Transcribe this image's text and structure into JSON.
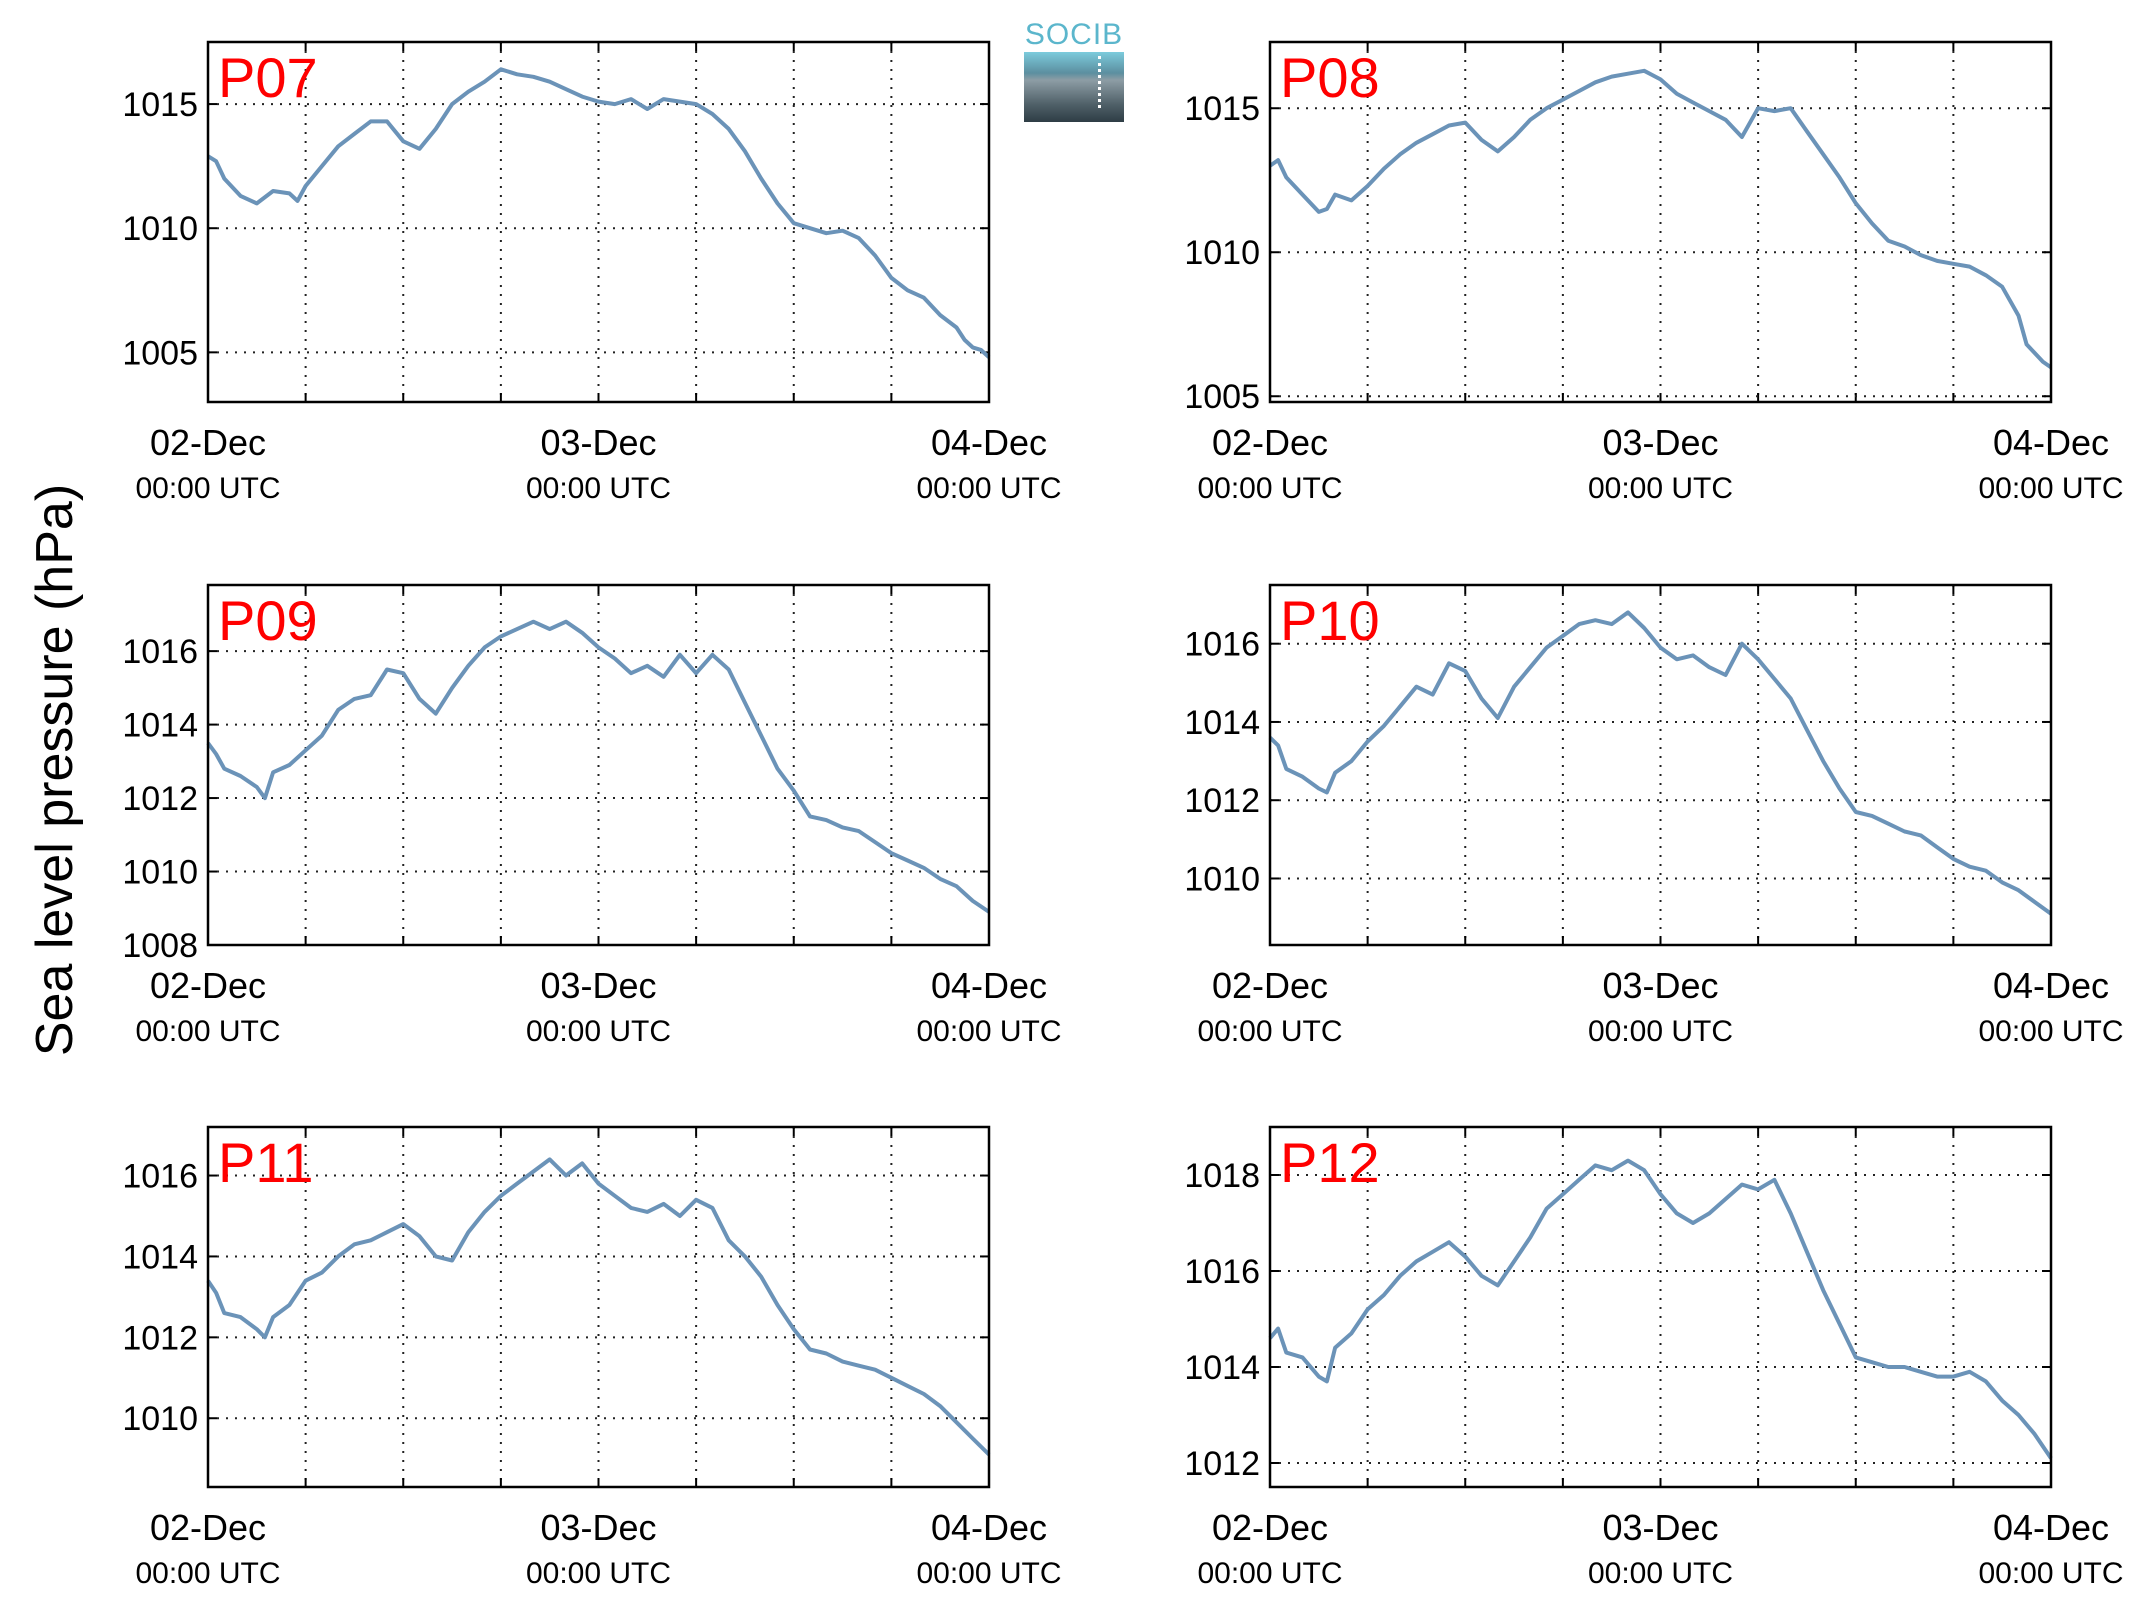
{
  "figure": {
    "ylabel": "Sea level pressure (hPa)",
    "logo_text": "SOCIB",
    "line_color": "#6b93b8",
    "label_color": "#ff0000"
  },
  "chart_data": [
    {
      "type": "line",
      "name": "P07",
      "xlabels": [
        [
          "02-Dec",
          "00:00 UTC"
        ],
        [
          "03-Dec",
          "00:00 UTC"
        ],
        [
          "04-Dec",
          "00:00 UTC"
        ]
      ],
      "xlim": [
        0,
        48
      ],
      "ylim": [
        1003,
        1017.5
      ],
      "yticks": [
        1005,
        1010,
        1015
      ],
      "x": [
        0,
        0.5,
        1,
        2,
        3,
        4,
        5,
        5.5,
        6,
        7,
        8,
        9,
        10,
        11,
        12,
        13,
        14,
        15,
        16,
        17,
        18,
        19,
        20,
        21,
        22,
        23,
        24,
        25,
        26,
        27,
        28,
        29,
        30,
        31,
        32,
        33,
        34,
        35,
        36,
        37,
        38,
        39,
        40,
        41,
        42,
        43,
        44,
        45,
        46,
        46.5,
        47,
        47.5,
        48
      ],
      "values": [
        1012.9,
        1012.7,
        1012.0,
        1011.3,
        1011.0,
        1011.5,
        1011.4,
        1011.1,
        1011.7,
        1012.5,
        1013.3,
        1013.8,
        1014.3,
        1014.3,
        1013.5,
        1013.2,
        1014.0,
        1015.0,
        1015.5,
        1015.9,
        1016.4,
        1016.2,
        1016.1,
        1015.9,
        1015.6,
        1015.3,
        1015.1,
        1015.0,
        1015.2,
        1014.8,
        1015.2,
        1015.1,
        1015.0,
        1014.6,
        1014.0,
        1013.1,
        1012.0,
        1011.0,
        1010.2,
        1010.0,
        1009.8,
        1009.9,
        1009.6,
        1008.9,
        1008.0,
        1007.5,
        1007.2,
        1006.5,
        1006.0,
        1005.5,
        1005.2,
        1005.1,
        1004.8
      ]
    },
    {
      "type": "line",
      "name": "P08",
      "xlabels": [
        [
          "02-Dec",
          "00:00 UTC"
        ],
        [
          "03-Dec",
          "00:00 UTC"
        ],
        [
          "04-Dec",
          "00:00 UTC"
        ]
      ],
      "xlim": [
        0,
        48
      ],
      "ylim": [
        1004.8,
        1017.3
      ],
      "yticks": [
        1005,
        1010,
        1015
      ],
      "x": [
        0,
        0.5,
        1,
        2,
        3,
        3.5,
        4,
        5,
        6,
        7,
        8,
        9,
        10,
        11,
        12,
        13,
        14,
        15,
        16,
        17,
        18,
        19,
        20,
        21,
        22,
        23,
        24,
        25,
        26,
        27,
        28,
        29,
        30,
        31,
        32,
        33,
        34,
        35,
        36,
        37,
        38,
        39,
        40,
        41,
        42,
        43,
        44,
        45,
        46,
        46.5,
        47,
        47.5,
        48
      ],
      "values": [
        1013.0,
        1013.2,
        1012.6,
        1012.0,
        1011.4,
        1011.5,
        1012.0,
        1011.8,
        1012.3,
        1012.9,
        1013.4,
        1013.8,
        1014.1,
        1014.4,
        1014.5,
        1013.9,
        1013.5,
        1014.0,
        1014.6,
        1015.0,
        1015.3,
        1015.6,
        1015.9,
        1016.1,
        1016.2,
        1016.3,
        1016.0,
        1015.5,
        1015.2,
        1014.9,
        1014.6,
        1014.0,
        1015.0,
        1014.9,
        1015.0,
        1014.2,
        1013.4,
        1012.6,
        1011.7,
        1011.0,
        1010.4,
        1010.2,
        1009.9,
        1009.7,
        1009.6,
        1009.5,
        1009.2,
        1008.8,
        1007.8,
        1006.8,
        1006.5,
        1006.2,
        1006.0
      ]
    },
    {
      "type": "line",
      "name": "P09",
      "xlabels": [
        [
          "02-Dec",
          "00:00 UTC"
        ],
        [
          "03-Dec",
          "00:00 UTC"
        ],
        [
          "04-Dec",
          "00:00 UTC"
        ]
      ],
      "xlim": [
        0,
        48
      ],
      "ylim": [
        1008,
        1017.8
      ],
      "yticks": [
        1008,
        1010,
        1012,
        1014,
        1016
      ],
      "x": [
        0,
        0.5,
        1,
        2,
        3,
        3.5,
        4,
        5,
        6,
        7,
        8,
        9,
        10,
        11,
        12,
        13,
        14,
        15,
        16,
        17,
        18,
        19,
        20,
        21,
        22,
        23,
        24,
        25,
        26,
        27,
        28,
        29,
        30,
        31,
        32,
        33,
        34,
        35,
        36,
        37,
        38,
        39,
        40,
        41,
        42,
        43,
        44,
        45,
        46,
        47,
        48
      ],
      "values": [
        1013.5,
        1013.2,
        1012.8,
        1012.6,
        1012.3,
        1012.0,
        1012.7,
        1012.9,
        1013.3,
        1013.7,
        1014.4,
        1014.7,
        1014.8,
        1015.5,
        1015.4,
        1014.7,
        1014.3,
        1015.0,
        1015.6,
        1016.1,
        1016.4,
        1016.6,
        1016.8,
        1016.6,
        1016.8,
        1016.5,
        1016.1,
        1015.8,
        1015.4,
        1015.6,
        1015.3,
        1015.9,
        1015.4,
        1015.9,
        1015.5,
        1014.6,
        1013.7,
        1012.8,
        1012.2,
        1011.5,
        1011.4,
        1011.2,
        1011.1,
        1010.8,
        1010.5,
        1010.3,
        1010.1,
        1009.8,
        1009.6,
        1009.2,
        1008.9
      ]
    },
    {
      "type": "line",
      "name": "P10",
      "xlabels": [
        [
          "02-Dec",
          "00:00 UTC"
        ],
        [
          "03-Dec",
          "00:00 UTC"
        ],
        [
          "04-Dec",
          "00:00 UTC"
        ]
      ],
      "xlim": [
        0,
        48
      ],
      "ylim": [
        1008.3,
        1017.5
      ],
      "yticks": [
        1010,
        1012,
        1014,
        1016
      ],
      "x": [
        0,
        0.5,
        1,
        2,
        3,
        3.5,
        4,
        5,
        6,
        7,
        8,
        9,
        10,
        11,
        12,
        13,
        14,
        15,
        16,
        17,
        18,
        19,
        20,
        21,
        22,
        23,
        24,
        25,
        26,
        27,
        28,
        29,
        30,
        31,
        32,
        33,
        34,
        35,
        36,
        37,
        38,
        39,
        40,
        41,
        42,
        43,
        44,
        45,
        46,
        47,
        48
      ],
      "values": [
        1013.6,
        1013.4,
        1012.8,
        1012.6,
        1012.3,
        1012.2,
        1012.7,
        1013.0,
        1013.5,
        1013.9,
        1014.4,
        1014.9,
        1014.7,
        1015.5,
        1015.3,
        1014.6,
        1014.1,
        1014.9,
        1015.4,
        1015.9,
        1016.2,
        1016.5,
        1016.6,
        1016.5,
        1016.8,
        1016.4,
        1015.9,
        1015.6,
        1015.7,
        1015.4,
        1015.2,
        1016.0,
        1015.6,
        1015.1,
        1014.6,
        1013.8,
        1013.0,
        1012.3,
        1011.7,
        1011.6,
        1011.4,
        1011.2,
        1011.1,
        1010.8,
        1010.5,
        1010.3,
        1010.2,
        1009.9,
        1009.7,
        1009.4,
        1009.1
      ]
    },
    {
      "type": "line",
      "name": "P11",
      "xlabels": [
        [
          "02-Dec",
          "00:00 UTC"
        ],
        [
          "03-Dec",
          "00:00 UTC"
        ],
        [
          "04-Dec",
          "00:00 UTC"
        ]
      ],
      "xlim": [
        0,
        48
      ],
      "ylim": [
        1008.3,
        1017.2
      ],
      "yticks": [
        1010,
        1012,
        1014,
        1016
      ],
      "x": [
        0,
        0.5,
        1,
        2,
        3,
        3.5,
        4,
        5,
        6,
        7,
        8,
        9,
        10,
        11,
        12,
        13,
        14,
        15,
        16,
        17,
        18,
        19,
        20,
        21,
        22,
        23,
        24,
        25,
        26,
        27,
        28,
        29,
        30,
        31,
        32,
        33,
        34,
        35,
        36,
        37,
        38,
        39,
        40,
        41,
        42,
        43,
        44,
        45,
        46,
        47,
        48
      ],
      "values": [
        1013.4,
        1013.1,
        1012.6,
        1012.5,
        1012.2,
        1012.0,
        1012.5,
        1012.8,
        1013.4,
        1013.6,
        1014.0,
        1014.3,
        1014.4,
        1014.6,
        1014.8,
        1014.5,
        1014.0,
        1013.9,
        1014.6,
        1015.1,
        1015.5,
        1015.8,
        1016.1,
        1016.4,
        1016.0,
        1016.3,
        1015.8,
        1015.5,
        1015.2,
        1015.1,
        1015.3,
        1015.0,
        1015.4,
        1015.2,
        1014.4,
        1014.0,
        1013.5,
        1012.8,
        1012.2,
        1011.7,
        1011.6,
        1011.4,
        1011.3,
        1011.2,
        1011.0,
        1010.8,
        1010.6,
        1010.3,
        1009.9,
        1009.5,
        1009.1
      ]
    },
    {
      "type": "line",
      "name": "P12",
      "xlabels": [
        [
          "02-Dec",
          "00:00 UTC"
        ],
        [
          "03-Dec",
          "00:00 UTC"
        ],
        [
          "04-Dec",
          "00:00 UTC"
        ]
      ],
      "xlim": [
        0,
        48
      ],
      "ylim": [
        1011.5,
        1019
      ],
      "yticks": [
        1012,
        1014,
        1016,
        1018
      ],
      "x": [
        0,
        0.5,
        1,
        2,
        3,
        3.5,
        4,
        5,
        6,
        7,
        8,
        9,
        10,
        11,
        12,
        13,
        14,
        15,
        16,
        17,
        18,
        19,
        20,
        21,
        22,
        23,
        24,
        25,
        26,
        27,
        28,
        29,
        30,
        31,
        32,
        33,
        34,
        35,
        36,
        37,
        38,
        39,
        40,
        41,
        42,
        43,
        44,
        45,
        46,
        47,
        48
      ],
      "values": [
        1014.6,
        1014.8,
        1014.3,
        1014.2,
        1013.8,
        1013.7,
        1014.4,
        1014.7,
        1015.2,
        1015.5,
        1015.9,
        1016.2,
        1016.4,
        1016.6,
        1016.3,
        1015.9,
        1015.7,
        1016.2,
        1016.7,
        1017.3,
        1017.6,
        1017.9,
        1018.2,
        1018.1,
        1018.3,
        1018.1,
        1017.6,
        1017.2,
        1017.0,
        1017.2,
        1017.5,
        1017.8,
        1017.7,
        1017.9,
        1017.2,
        1016.4,
        1015.6,
        1014.9,
        1014.2,
        1014.1,
        1014.0,
        1014.0,
        1013.9,
        1013.8,
        1013.8,
        1013.9,
        1013.7,
        1013.3,
        1013.0,
        1012.6,
        1012.1
      ]
    }
  ]
}
